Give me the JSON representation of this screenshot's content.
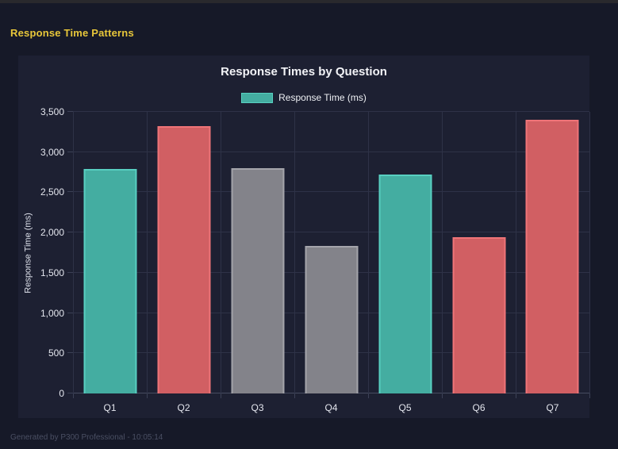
{
  "page": {
    "title": "Response Time Patterns",
    "footer": "Generated by P300 Professional - 10:05:14"
  },
  "colors": {
    "page_bg": "#161928",
    "top_strip": "#29292d",
    "card_bg": "#1d2032",
    "grid_line": "#2e3247",
    "axis_line": "#474c61",
    "title_yellow": "#e8c73a",
    "axis_text": "#e4e6ee",
    "footer_text": "#4a4f63",
    "teal": "#44ada1",
    "teal_border": "#58cfc1",
    "red": "#d15f63",
    "red_border": "#ef7478",
    "gray": "#83838a",
    "gray_border": "#a4a4ab"
  },
  "chart_data": {
    "type": "bar",
    "title": "Response Times by Question",
    "ylabel": "Response Time (ms)",
    "xlabel": "",
    "legend": [
      {
        "label": "Response Time (ms)",
        "color": "teal"
      }
    ],
    "legend_position": "top",
    "grid": true,
    "categories": [
      "Q1",
      "Q2",
      "Q3",
      "Q4",
      "Q5",
      "Q6",
      "Q7"
    ],
    "values": [
      2790,
      3325,
      2800,
      1830,
      2720,
      1945,
      3405
    ],
    "bar_colors": [
      "teal",
      "red",
      "gray",
      "gray",
      "teal",
      "red",
      "red"
    ],
    "ylim": [
      0,
      3500
    ],
    "ytick_step": 500,
    "yticks": [
      "0",
      "500",
      "1,000",
      "1,500",
      "2,000",
      "2,500",
      "3,000",
      "3,500"
    ]
  }
}
